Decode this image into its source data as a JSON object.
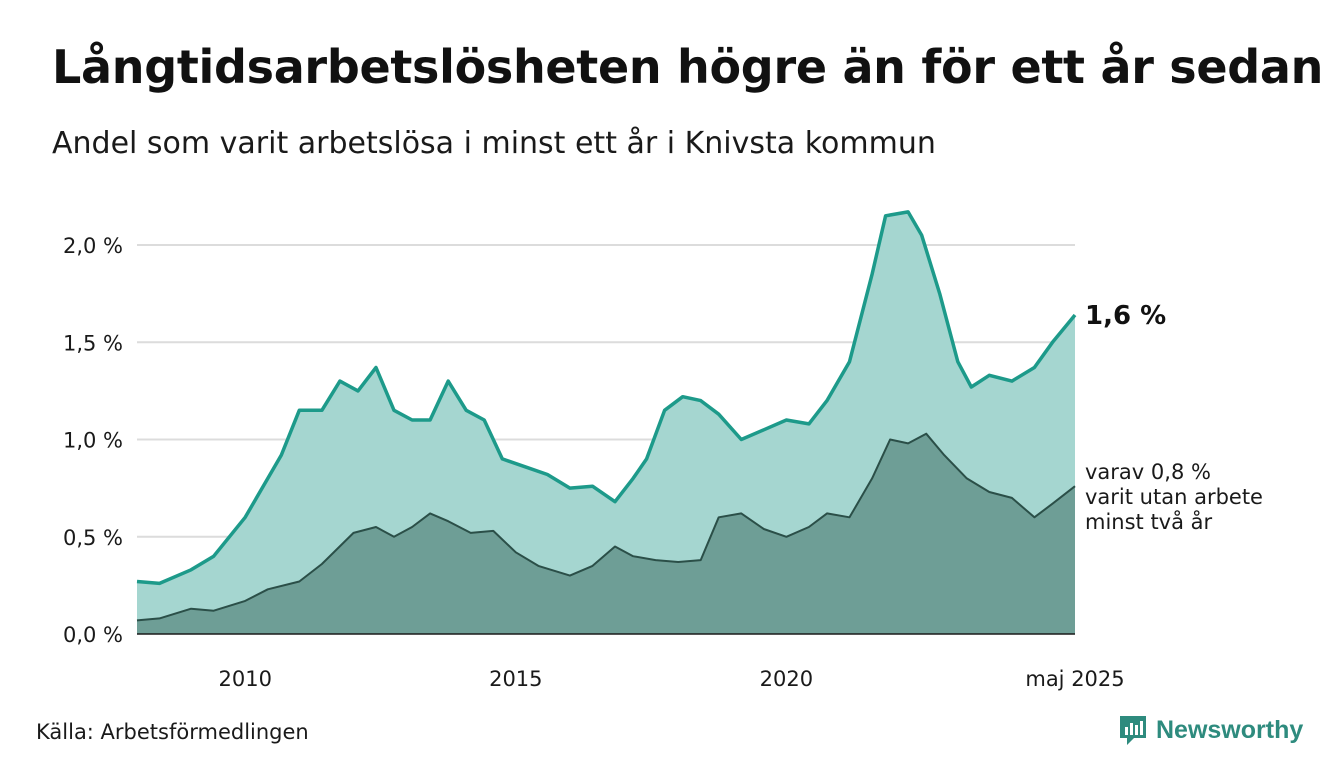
{
  "title": "Långtidsarbetslösheten högre än för ett år sedan",
  "subtitle": "Andel som varit arbetslösa i minst ett år i Knivsta kommun",
  "source": "Källa: Arbetsförmedlingen",
  "brand": {
    "name": "Newsworthy",
    "icon": "newsworthy-logo-icon",
    "color": "#2e8b7e"
  },
  "colors": {
    "main_line": "#1d9a8a",
    "main_fill": "#a5d6d0",
    "sub_line": "#2b4f48",
    "sub_fill": "#6e9e96",
    "grid": "#dcdcdc"
  },
  "chart_data": {
    "type": "area",
    "title": "Långtidsarbetslösheten högre än för ett år sedan",
    "subtitle": "Andel som varit arbetslösa i minst ett år i Knivsta kommun",
    "xlabel": "",
    "ylabel": "",
    "x_start": "2008-01",
    "x_end": "2025-05",
    "y_range": [
      0,
      2.2
    ],
    "y_ticks": [
      {
        "value": 0,
        "label": "0,0 %"
      },
      {
        "value": 0.5,
        "label": "0,5 %"
      },
      {
        "value": 1.0,
        "label": "1,0 %"
      },
      {
        "value": 1.5,
        "label": "1,5 %"
      },
      {
        "value": 2.0,
        "label": "2,0 %"
      }
    ],
    "x_ticks": [
      {
        "date": "2010-01",
        "label": "2010"
      },
      {
        "date": "2015-01",
        "label": "2015"
      },
      {
        "date": "2020-01",
        "label": "2020"
      },
      {
        "date": "2025-05",
        "label": "maj 2025"
      }
    ],
    "grid": true,
    "series": [
      {
        "label": "1,6 %",
        "points": [
          [
            "2008-01",
            0.27
          ],
          [
            "2008-06",
            0.26
          ],
          [
            "2009-01",
            0.33
          ],
          [
            "2009-06",
            0.4
          ],
          [
            "2010-01",
            0.6
          ],
          [
            "2010-06",
            0.8
          ],
          [
            "2010-09",
            0.92
          ],
          [
            "2011-01",
            1.15
          ],
          [
            "2011-06",
            1.15
          ],
          [
            "2011-10",
            1.3
          ],
          [
            "2012-02",
            1.25
          ],
          [
            "2012-06",
            1.37
          ],
          [
            "2012-10",
            1.15
          ],
          [
            "2013-02",
            1.1
          ],
          [
            "2013-06",
            1.1
          ],
          [
            "2013-10",
            1.3
          ],
          [
            "2014-02",
            1.15
          ],
          [
            "2014-06",
            1.1
          ],
          [
            "2014-10",
            0.9
          ],
          [
            "2015-03",
            0.86
          ],
          [
            "2015-08",
            0.82
          ],
          [
            "2016-01",
            0.75
          ],
          [
            "2016-06",
            0.76
          ],
          [
            "2016-11",
            0.68
          ],
          [
            "2017-03",
            0.8
          ],
          [
            "2017-06",
            0.9
          ],
          [
            "2017-10",
            1.15
          ],
          [
            "2018-02",
            1.22
          ],
          [
            "2018-06",
            1.2
          ],
          [
            "2018-10",
            1.13
          ],
          [
            "2019-03",
            1.0
          ],
          [
            "2019-08",
            1.05
          ],
          [
            "2020-01",
            1.1
          ],
          [
            "2020-06",
            1.08
          ],
          [
            "2020-10",
            1.2
          ],
          [
            "2021-03",
            1.4
          ],
          [
            "2021-08",
            1.85
          ],
          [
            "2021-11",
            2.15
          ],
          [
            "2022-04",
            2.17
          ],
          [
            "2022-07",
            2.05
          ],
          [
            "2022-11",
            1.75
          ],
          [
            "2023-03",
            1.4
          ],
          [
            "2023-06",
            1.27
          ],
          [
            "2023-10",
            1.33
          ],
          [
            "2024-03",
            1.3
          ],
          [
            "2024-08",
            1.37
          ],
          [
            "2024-12",
            1.5
          ],
          [
            "2025-05",
            1.64
          ]
        ]
      },
      {
        "label": "varav 0,8 % varit utan arbete minst två år",
        "points": [
          [
            "2008-01",
            0.07
          ],
          [
            "2008-06",
            0.08
          ],
          [
            "2009-01",
            0.13
          ],
          [
            "2009-06",
            0.12
          ],
          [
            "2010-01",
            0.17
          ],
          [
            "2010-06",
            0.23
          ],
          [
            "2011-01",
            0.27
          ],
          [
            "2011-06",
            0.36
          ],
          [
            "2012-01",
            0.52
          ],
          [
            "2012-06",
            0.55
          ],
          [
            "2012-10",
            0.5
          ],
          [
            "2013-02",
            0.55
          ],
          [
            "2013-06",
            0.62
          ],
          [
            "2013-10",
            0.58
          ],
          [
            "2014-03",
            0.52
          ],
          [
            "2014-08",
            0.53
          ],
          [
            "2015-01",
            0.42
          ],
          [
            "2015-06",
            0.35
          ],
          [
            "2016-01",
            0.3
          ],
          [
            "2016-06",
            0.35
          ],
          [
            "2016-11",
            0.45
          ],
          [
            "2017-03",
            0.4
          ],
          [
            "2017-08",
            0.38
          ],
          [
            "2018-01",
            0.37
          ],
          [
            "2018-06",
            0.38
          ],
          [
            "2018-10",
            0.6
          ],
          [
            "2019-03",
            0.62
          ],
          [
            "2019-08",
            0.54
          ],
          [
            "2020-01",
            0.5
          ],
          [
            "2020-06",
            0.55
          ],
          [
            "2020-10",
            0.62
          ],
          [
            "2021-03",
            0.6
          ],
          [
            "2021-08",
            0.8
          ],
          [
            "2021-12",
            1.0
          ],
          [
            "2022-04",
            0.98
          ],
          [
            "2022-08",
            1.03
          ],
          [
            "2022-12",
            0.92
          ],
          [
            "2023-05",
            0.8
          ],
          [
            "2023-10",
            0.73
          ],
          [
            "2024-03",
            0.7
          ],
          [
            "2024-08",
            0.6
          ],
          [
            "2024-12",
            0.67
          ],
          [
            "2025-05",
            0.76
          ]
        ]
      }
    ]
  }
}
